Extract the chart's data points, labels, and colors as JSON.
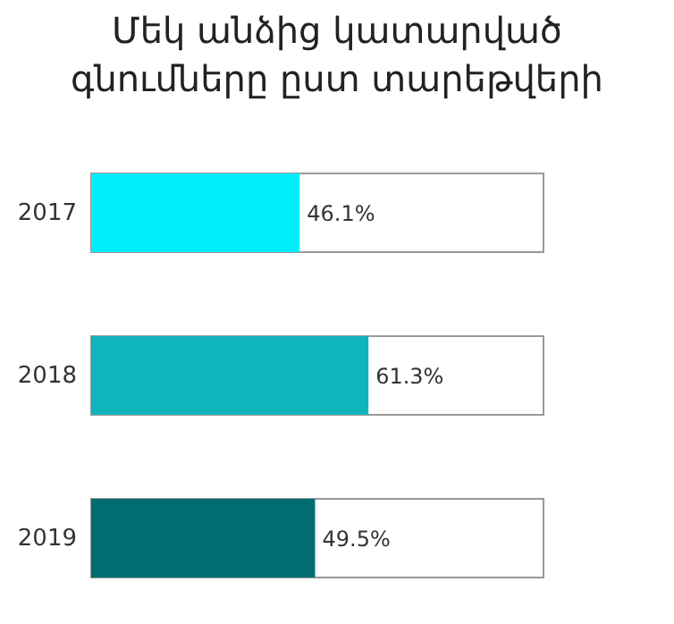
{
  "chart_data": {
    "type": "bar",
    "orientation": "horizontal",
    "title": "Մեկ անձից կատարված գնումները ըստ տարեթվերի",
    "categories": [
      "2017",
      "2018",
      "2019"
    ],
    "values": [
      46.1,
      61.3,
      49.5
    ],
    "colors": [
      "#00eefa",
      "#10b4bc",
      "#006d70"
    ],
    "value_labels": [
      "46.1%",
      "61.3%",
      "49.5%"
    ],
    "xlim": [
      0,
      100
    ],
    "tick_labels": "y"
  }
}
